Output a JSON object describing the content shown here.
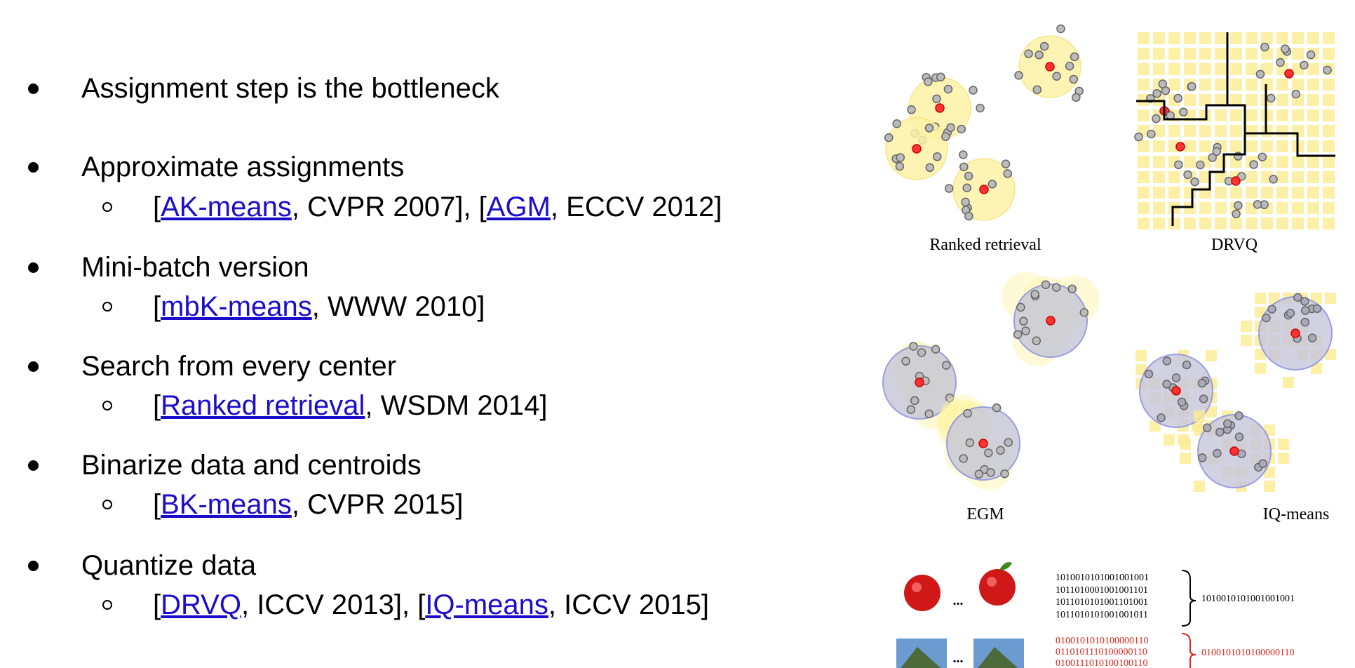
{
  "bullets": [
    {
      "text": "Assignment step is the bottleneck",
      "subs": []
    },
    {
      "text": "Approximate assignments",
      "subs": [
        [
          {
            "text": "["
          },
          {
            "link": "AK-means"
          },
          {
            "text": ", CVPR 2007], ["
          },
          {
            "link": "AGM"
          },
          {
            "text": ", ECCV 2012]"
          }
        ]
      ]
    },
    {
      "text": "Mini-batch version",
      "subs": [
        [
          {
            "text": "["
          },
          {
            "link": "mbK-means"
          },
          {
            "text": ", WWW 2010]"
          }
        ]
      ]
    },
    {
      "text": "Search from every center",
      "subs": [
        [
          {
            "text": "["
          },
          {
            "link": "Ranked retrieval"
          },
          {
            "text": ", WSDM 2014]"
          }
        ]
      ]
    },
    {
      "text": "Binarize data and centroids",
      "subs": [
        [
          {
            "text": "["
          },
          {
            "link": "BK-means"
          },
          {
            "text": ", CVPR 2015]"
          }
        ]
      ]
    },
    {
      "text": "Quantize data",
      "subs": [
        [
          {
            "text": "["
          },
          {
            "link": "DRVQ"
          },
          {
            "text": ", ICCV 2013], ["
          },
          {
            "link": "IQ-means"
          },
          {
            "text": ", ICCV 2015]"
          }
        ]
      ]
    }
  ],
  "figures": {
    "panels": [
      "Ranked retrieval",
      "DRVQ",
      "EGM",
      "IQ-means"
    ],
    "binary": {
      "ellipsis": "...",
      "top": {
        "rows": [
          "1010010101001001001",
          "1011010001001001101",
          "1011010101001101001",
          "1011010101001001011"
        ],
        "result": "1010010101001001001"
      },
      "bottom": {
        "rows": [
          "0100101010100000110",
          "0110101110100000110",
          "0100111010100100110"
        ],
        "result": "0100101010100000110"
      }
    }
  }
}
